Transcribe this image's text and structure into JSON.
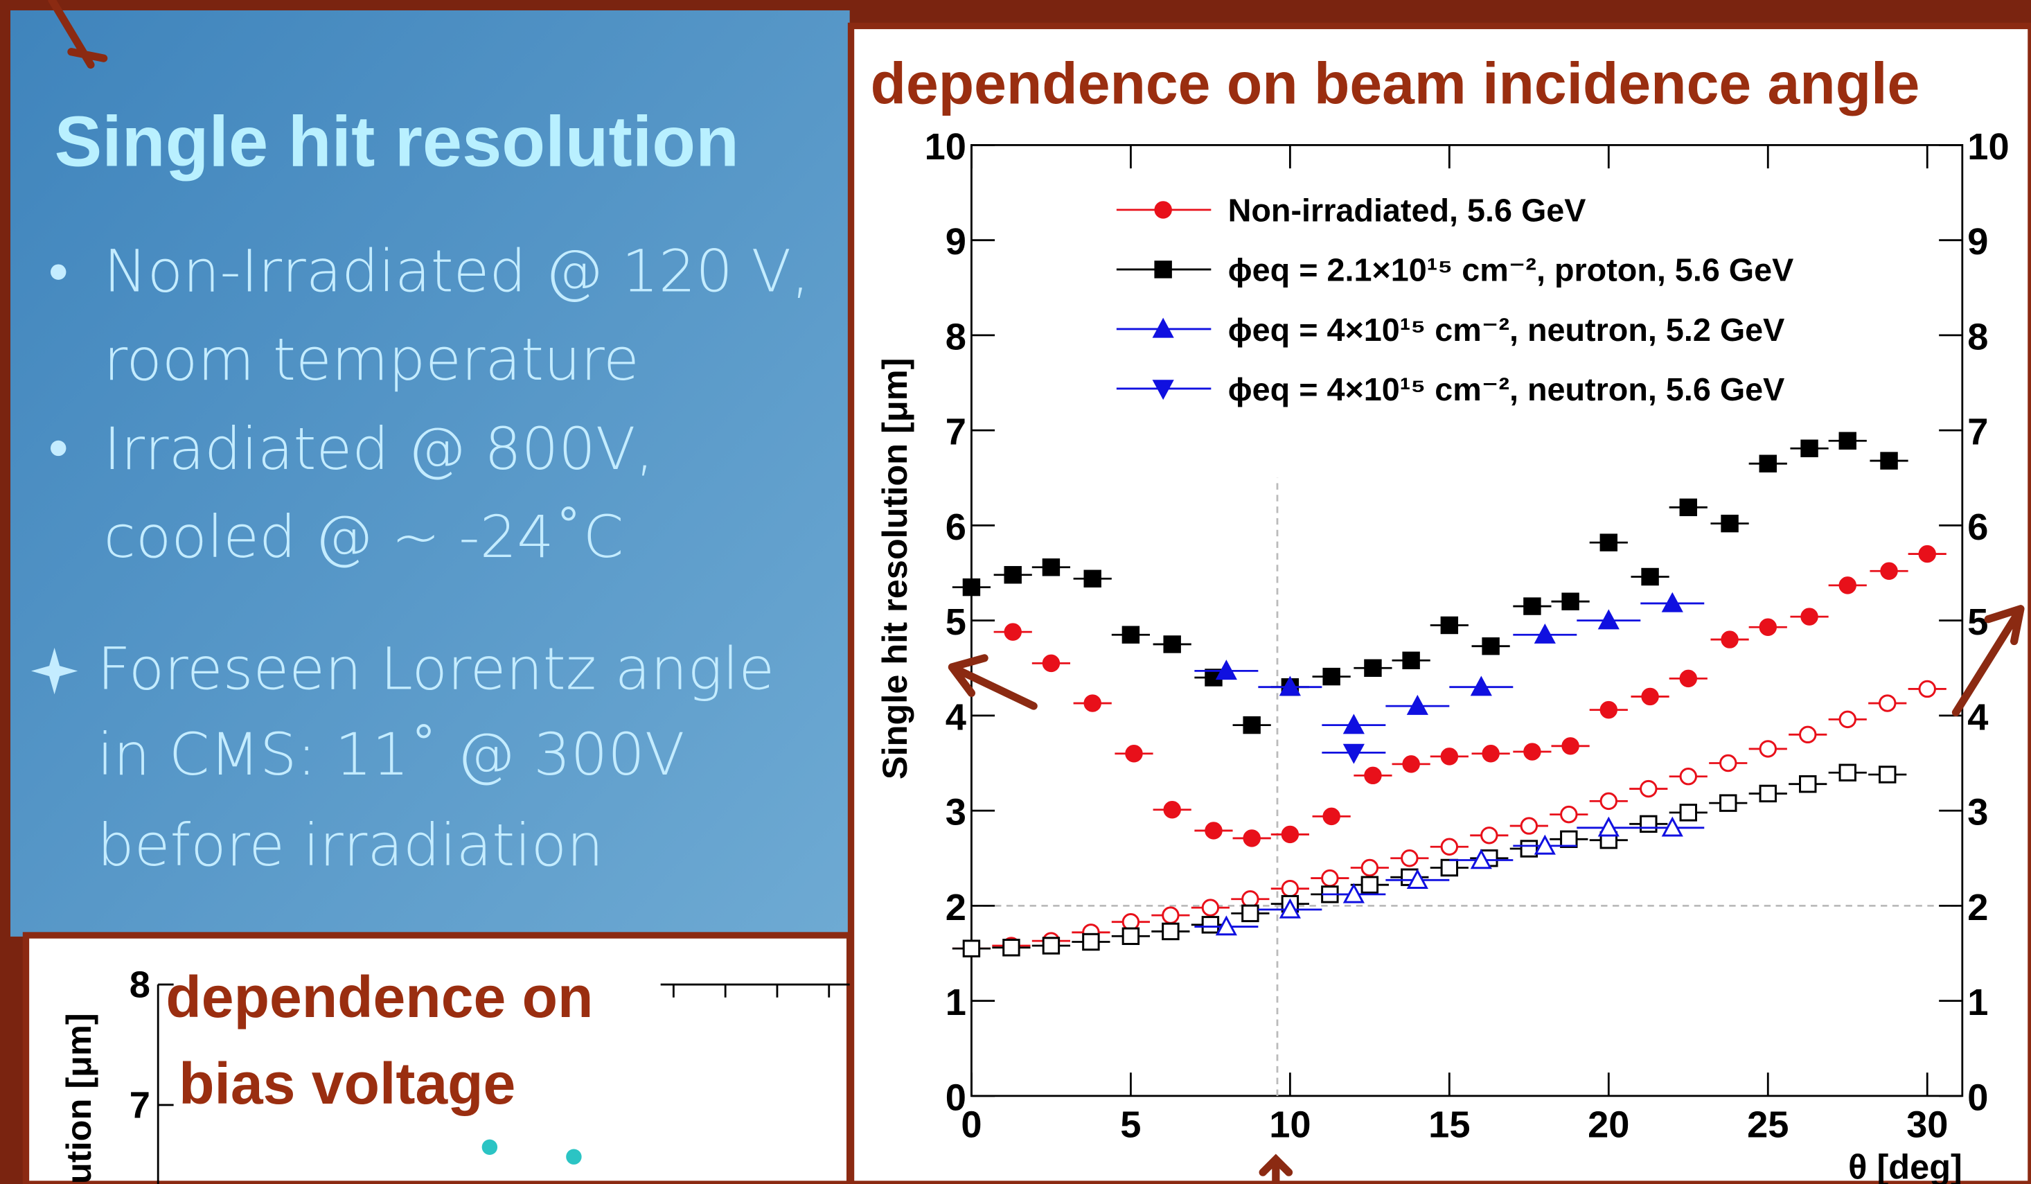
{
  "slide": {
    "title": "Single hit resolution",
    "bullets": [
      [
        "Non-Irradiated @ 120 V,",
        "room temperature"
      ],
      [
        "Irradiated @ 800V,",
        "cooled @ ~ -24˚C"
      ]
    ],
    "note": [
      "Foreseen Lorentz angle",
      "in CMS: 11˚ @ 300V",
      "before irradiation"
    ]
  },
  "chart_data": [
    {
      "type": "scatter",
      "title": "dependence on beam incidence angle",
      "xlabel": "θ [deg]",
      "ylabel": "Single hit resolution [μm]",
      "xlim": [
        0,
        31.1
      ],
      "xticks": [
        0,
        5,
        10,
        15,
        20,
        25,
        30
      ],
      "ylim": [
        0,
        10
      ],
      "yticks": [
        0,
        1,
        2,
        3,
        4,
        5,
        6,
        7,
        8,
        9,
        10
      ],
      "y2lim": [
        0,
        10
      ],
      "y2ticks": [
        0,
        1,
        2,
        3,
        4,
        5,
        6,
        7,
        8,
        9,
        10
      ],
      "reference_lines": {
        "x": 9.6,
        "x_to": 6.5,
        "y": 2
      },
      "series": [
        {
          "name": "Non-irradiated, 5.6 GeV",
          "color": "#e8101a",
          "marker": "circle",
          "filled": true,
          "xerr": 0.6,
          "x": [
            1.3,
            2.5,
            3.8,
            5.1,
            6.3,
            7.6,
            8.8,
            10.0,
            11.3,
            12.6,
            13.8,
            15.0,
            16.3,
            17.6,
            18.8,
            20.0,
            21.3,
            22.5,
            23.8,
            25.0,
            26.3,
            27.5,
            28.8,
            30.0
          ],
          "values": [
            4.88,
            4.55,
            4.13,
            3.6,
            3.01,
            2.79,
            2.71,
            2.75,
            2.94,
            3.37,
            3.49,
            3.57,
            3.6,
            3.62,
            3.68,
            4.06,
            4.2,
            4.39,
            4.8,
            4.93,
            5.04,
            5.37,
            5.52,
            5.7
          ]
        },
        {
          "name": "ϕeq = 2.1×10¹⁵ cm⁻², proton, 5.6 GeV",
          "color": "#000000",
          "marker": "square",
          "filled": true,
          "xerr": 0.6,
          "x": [
            0,
            1.3,
            2.5,
            3.8,
            5.0,
            6.3,
            7.6,
            8.8,
            10.0,
            11.3,
            12.6,
            13.8,
            15.0,
            16.3,
            17.6,
            18.8,
            20.0,
            21.3,
            22.5,
            23.8,
            25.0,
            26.3,
            27.5,
            28.8
          ],
          "values": [
            5.35,
            5.48,
            5.56,
            5.44,
            4.85,
            4.75,
            4.4,
            3.9,
            4.3,
            4.41,
            4.5,
            4.58,
            4.95,
            4.73,
            5.15,
            5.2,
            5.82,
            5.46,
            6.19,
            6.02,
            6.65,
            6.81,
            6.89,
            6.68
          ]
        },
        {
          "name": "ϕeq = 4×10¹⁵ cm⁻², neutron, 5.2 GeV",
          "color": "#1010e0",
          "marker": "triangle-up",
          "filled": true,
          "xerr": 1.0,
          "x": [
            8.0,
            10.0,
            12.0,
            14.0,
            16.0,
            18.0,
            20.0,
            22.0
          ],
          "values": [
            4.47,
            4.3,
            3.9,
            4.1,
            4.3,
            4.85,
            5.0,
            5.18
          ]
        },
        {
          "name": "ϕeq = 4×10¹⁵ cm⁻², neutron, 5.6 GeV",
          "color": "#1010e0",
          "marker": "triangle-down",
          "filled": true,
          "xerr": 1.0,
          "x": [
            12.0
          ],
          "values": [
            3.61
          ]
        },
        {
          "color": "#e8101a",
          "marker": "circle",
          "filled": false,
          "xerr": 0.6,
          "axis": "y2",
          "x": [
            0,
            1.25,
            2.5,
            3.75,
            5,
            6.25,
            7.5,
            8.75,
            10,
            11.25,
            12.5,
            13.75,
            15,
            16.25,
            17.5,
            18.75,
            20,
            21.25,
            22.5,
            23.75,
            25,
            26.25,
            27.5,
            28.75,
            30
          ],
          "values": [
            1.55,
            1.58,
            1.63,
            1.72,
            1.83,
            1.9,
            1.98,
            2.07,
            2.18,
            2.29,
            2.4,
            2.5,
            2.62,
            2.74,
            2.84,
            2.96,
            3.1,
            3.23,
            3.36,
            3.5,
            3.65,
            3.8,
            3.96,
            4.13,
            4.28
          ]
        },
        {
          "color": "#000000",
          "marker": "square",
          "filled": false,
          "xerr": 0.6,
          "axis": "y2",
          "x": [
            0,
            1.25,
            2.5,
            3.75,
            5,
            6.25,
            7.5,
            8.75,
            10,
            11.25,
            12.5,
            13.75,
            15,
            16.25,
            17.5,
            18.75,
            20,
            21.25,
            22.5,
            23.75,
            25,
            26.25,
            27.5,
            28.75
          ],
          "values": [
            1.55,
            1.56,
            1.58,
            1.62,
            1.68,
            1.73,
            1.8,
            1.92,
            2.02,
            2.12,
            2.22,
            2.3,
            2.4,
            2.5,
            2.6,
            2.7,
            2.69,
            2.86,
            2.98,
            3.08,
            3.18,
            3.28,
            3.4,
            3.38
          ]
        },
        {
          "color": "#1010e0",
          "marker": "triangle-up",
          "filled": false,
          "xerr": 1.0,
          "axis": "y2",
          "x": [
            8,
            10,
            12,
            14,
            16,
            18,
            20,
            22
          ],
          "values": [
            1.78,
            1.96,
            2.12,
            2.27,
            2.48,
            2.63,
            2.82,
            2.82
          ]
        }
      ]
    },
    {
      "type": "scatter",
      "title": [
        "dependence on",
        "bias voltage"
      ],
      "ylabel": "ution [μm]",
      "ylim": [
        6,
        8
      ],
      "yticks": [
        7,
        8
      ],
      "color": "#2bc4c4",
      "categories": [
        null,
        null
      ],
      "values": [
        6.65,
        6.57
      ]
    }
  ]
}
